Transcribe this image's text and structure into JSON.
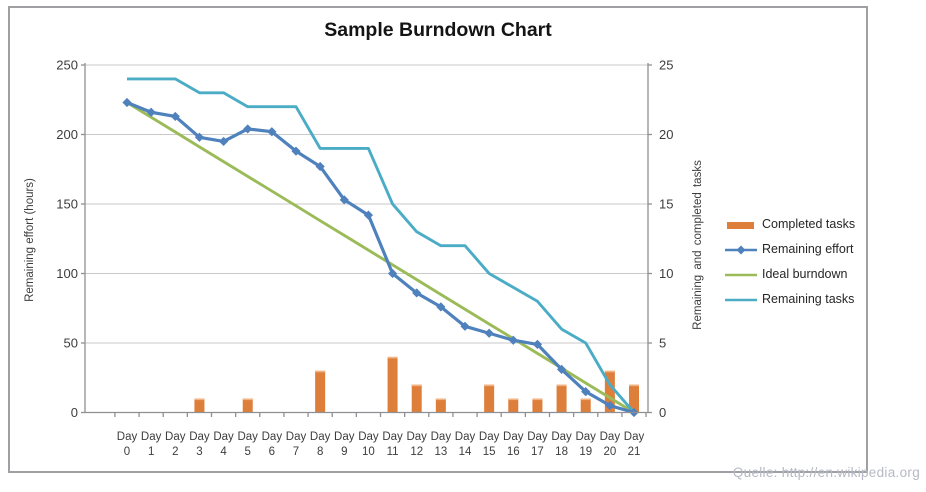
{
  "source_note": "Quelle: http://en.wikipedia.org",
  "chart_data": {
    "type": "combo-bar-line",
    "title": "Sample Burndown Chart",
    "categories": [
      "Day 0",
      "Day 1",
      "Day 2",
      "Day 3",
      "Day 4",
      "Day 5",
      "Day 6",
      "Day 7",
      "Day 8",
      "Day 9",
      "Day 10",
      "Day 11",
      "Day 12",
      "Day 13",
      "Day 14",
      "Day 15",
      "Day 16",
      "Day 17",
      "Day 18",
      "Day 19",
      "Day 20",
      "Day 21"
    ],
    "left_axis": {
      "title": "Remaining effort (hours)",
      "ticks": [
        0,
        50,
        100,
        150,
        200,
        250
      ],
      "range": [
        0,
        250
      ]
    },
    "right_axis": {
      "title": "Remaining and completed tasks",
      "ticks": [
        0,
        5,
        10,
        15,
        20,
        25
      ],
      "range": [
        0,
        25
      ]
    },
    "grid": true,
    "legend_position": "right",
    "series": [
      {
        "name": "Completed tasks",
        "type": "bar",
        "axis": "right",
        "z": 1,
        "color": "#DD7E3B",
        "highlight": "#F2B483",
        "values": [
          0,
          0,
          0,
          1,
          0,
          1,
          0,
          0,
          3,
          0,
          0,
          4,
          2,
          1,
          0,
          2,
          1,
          1,
          2,
          1,
          3,
          2
        ]
      },
      {
        "name": "Remaining effort",
        "type": "line",
        "axis": "left",
        "z": 4,
        "color": "#4F81BD",
        "marker": "diamond",
        "values": [
          223,
          216,
          213,
          198,
          195,
          204,
          202,
          188,
          177,
          153,
          142,
          100,
          86,
          76,
          62,
          57,
          52,
          49,
          31,
          15,
          5,
          0
        ]
      },
      {
        "name": "Ideal burndown",
        "type": "line",
        "axis": "left",
        "z": 2,
        "color": "#9BBB59",
        "values": [
          223,
          212.4,
          201.8,
          191.1,
          180.5,
          169.9,
          159.3,
          148.7,
          138.0,
          127.4,
          116.8,
          106.2,
          95.6,
          84.9,
          74.3,
          63.7,
          53.1,
          42.5,
          31.9,
          21.2,
          10.6,
          0
        ]
      },
      {
        "name": "Remaining tasks",
        "type": "line",
        "axis": "right",
        "z": 3,
        "color": "#4BACC6",
        "values": [
          24,
          24,
          24,
          23,
          23,
          22,
          22,
          22,
          19,
          19,
          19,
          15,
          13,
          12,
          12,
          10,
          9,
          8,
          6,
          5,
          2,
          0
        ]
      }
    ]
  }
}
